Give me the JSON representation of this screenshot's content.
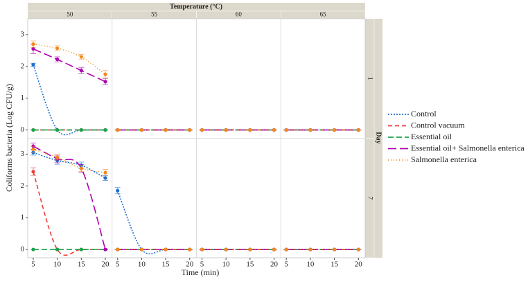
{
  "chart_data": {
    "type": "line",
    "title": "Temperature (°C)",
    "columns": [
      "50",
      "55",
      "60",
      "65"
    ],
    "row_title": "Day",
    "rows": [
      "1",
      "7"
    ],
    "xlabel": "Time (min)",
    "ylabel": "Coliforms bacteria (Log CFU/g)",
    "x": [
      5,
      10,
      15,
      20
    ],
    "xlim": [
      3.85,
      21.4
    ],
    "xticks": [
      5,
      10,
      15,
      20
    ],
    "ylim": [
      -0.26,
      3.5
    ],
    "yticks": [
      0,
      1,
      2,
      3
    ],
    "series": [
      {
        "name": "Control",
        "color": "#1f6fd1",
        "dash": "2 2",
        "values": [
          [
            [
              2.05,
              0,
              0,
              0
            ],
            [
              0,
              0,
              0,
              0
            ],
            [
              0,
              0,
              0,
              0
            ],
            [
              0,
              0,
              0,
              0
            ]
          ],
          [
            [
              3.05,
              2.8,
              2.65,
              2.25
            ],
            [
              1.85,
              0,
              0,
              0
            ],
            [
              0,
              0,
              0,
              0
            ],
            [
              0,
              0,
              0,
              0
            ]
          ]
        ],
        "errors": [
          [
            [
              0.05,
              0,
              0,
              0
            ],
            [
              0,
              0,
              0,
              0
            ],
            [
              0,
              0,
              0,
              0
            ],
            [
              0,
              0,
              0,
              0
            ]
          ],
          [
            [
              0.08,
              0.12,
              0.1,
              0.08
            ],
            [
              0.1,
              0,
              0,
              0
            ],
            [
              0,
              0,
              0,
              0
            ],
            [
              0,
              0,
              0,
              0
            ]
          ]
        ]
      },
      {
        "name": "Control vacuum",
        "color": "#e8413c",
        "dash": "6 4",
        "values": [
          [
            [
              0,
              0,
              0,
              0
            ],
            [
              0,
              0,
              0,
              0
            ],
            [
              0,
              0,
              0,
              0
            ],
            [
              0,
              0,
              0,
              0
            ]
          ],
          [
            [
              2.45,
              0,
              0,
              0
            ],
            [
              0,
              0,
              0,
              0
            ],
            [
              0,
              0,
              0,
              0
            ],
            [
              0,
              0,
              0,
              0
            ]
          ]
        ],
        "errors": [
          [
            [
              0,
              0,
              0,
              0
            ],
            [
              0,
              0,
              0,
              0
            ],
            [
              0,
              0,
              0,
              0
            ],
            [
              0,
              0,
              0,
              0
            ]
          ],
          [
            [
              0.12,
              0,
              0,
              0
            ],
            [
              0,
              0,
              0,
              0
            ],
            [
              0,
              0,
              0,
              0
            ],
            [
              0,
              0,
              0,
              0
            ]
          ]
        ]
      },
      {
        "name": "Essential oil",
        "color": "#1aa34a",
        "dash": "8 4",
        "values": [
          [
            [
              0,
              0,
              0,
              0
            ],
            [
              0,
              0,
              0,
              0
            ],
            [
              0,
              0,
              0,
              0
            ],
            [
              0,
              0,
              0,
              0
            ]
          ],
          [
            [
              0,
              0,
              0,
              0
            ],
            [
              0,
              0,
              0,
              0
            ],
            [
              0,
              0,
              0,
              0
            ],
            [
              0,
              0,
              0,
              0
            ]
          ]
        ],
        "errors": [
          [
            [
              0,
              0,
              0,
              0
            ],
            [
              0,
              0,
              0,
              0
            ],
            [
              0,
              0,
              0,
              0
            ],
            [
              0,
              0,
              0,
              0
            ]
          ],
          [
            [
              0,
              0,
              0,
              0
            ],
            [
              0,
              0,
              0,
              0
            ],
            [
              0,
              0,
              0,
              0
            ],
            [
              0,
              0,
              0,
              0
            ]
          ]
        ]
      },
      {
        "name": "Essential oil+ Salmonella enterica",
        "color": "#b000b0",
        "dash": "12 5",
        "values": [
          [
            [
              2.55,
              2.22,
              1.87,
              1.52
            ],
            [
              0,
              0,
              0,
              0
            ],
            [
              0,
              0,
              0,
              0
            ],
            [
              0,
              0,
              0,
              0
            ]
          ],
          [
            [
              3.25,
              2.85,
              2.55,
              0
            ],
            [
              0,
              0,
              0,
              0
            ],
            [
              0,
              0,
              0,
              0
            ],
            [
              0,
              0,
              0,
              0
            ]
          ]
        ],
        "errors": [
          [
            [
              0.15,
              0.08,
              0.1,
              0.1
            ],
            [
              0,
              0,
              0,
              0
            ],
            [
              0,
              0,
              0,
              0
            ],
            [
              0,
              0,
              0,
              0
            ]
          ],
          [
            [
              0.1,
              0.12,
              0.12,
              0
            ],
            [
              0,
              0,
              0,
              0
            ],
            [
              0,
              0,
              0,
              0
            ],
            [
              0,
              0,
              0,
              0
            ]
          ]
        ]
      },
      {
        "name": "Salmonella enterica",
        "color": "#f28a1e",
        "dash": "1 3",
        "values": [
          [
            [
              2.7,
              2.57,
              2.3,
              1.75
            ],
            [
              0,
              0,
              0,
              0
            ],
            [
              0,
              0,
              0,
              0
            ],
            [
              0,
              0,
              0,
              0
            ]
          ],
          [
            [
              3.15,
              2.9,
              2.55,
              2.42
            ],
            [
              0,
              0,
              0,
              0
            ],
            [
              0,
              0,
              0,
              0
            ],
            [
              0,
              0,
              0,
              0
            ]
          ]
        ],
        "errors": [
          [
            [
              0.1,
              0.08,
              0.08,
              0.12
            ],
            [
              0,
              0,
              0,
              0
            ],
            [
              0,
              0,
              0,
              0
            ],
            [
              0,
              0,
              0,
              0
            ]
          ],
          [
            [
              0.1,
              0.08,
              0.1,
              0.1
            ],
            [
              0,
              0,
              0,
              0
            ],
            [
              0,
              0,
              0,
              0
            ],
            [
              0,
              0,
              0,
              0
            ]
          ]
        ]
      }
    ]
  }
}
